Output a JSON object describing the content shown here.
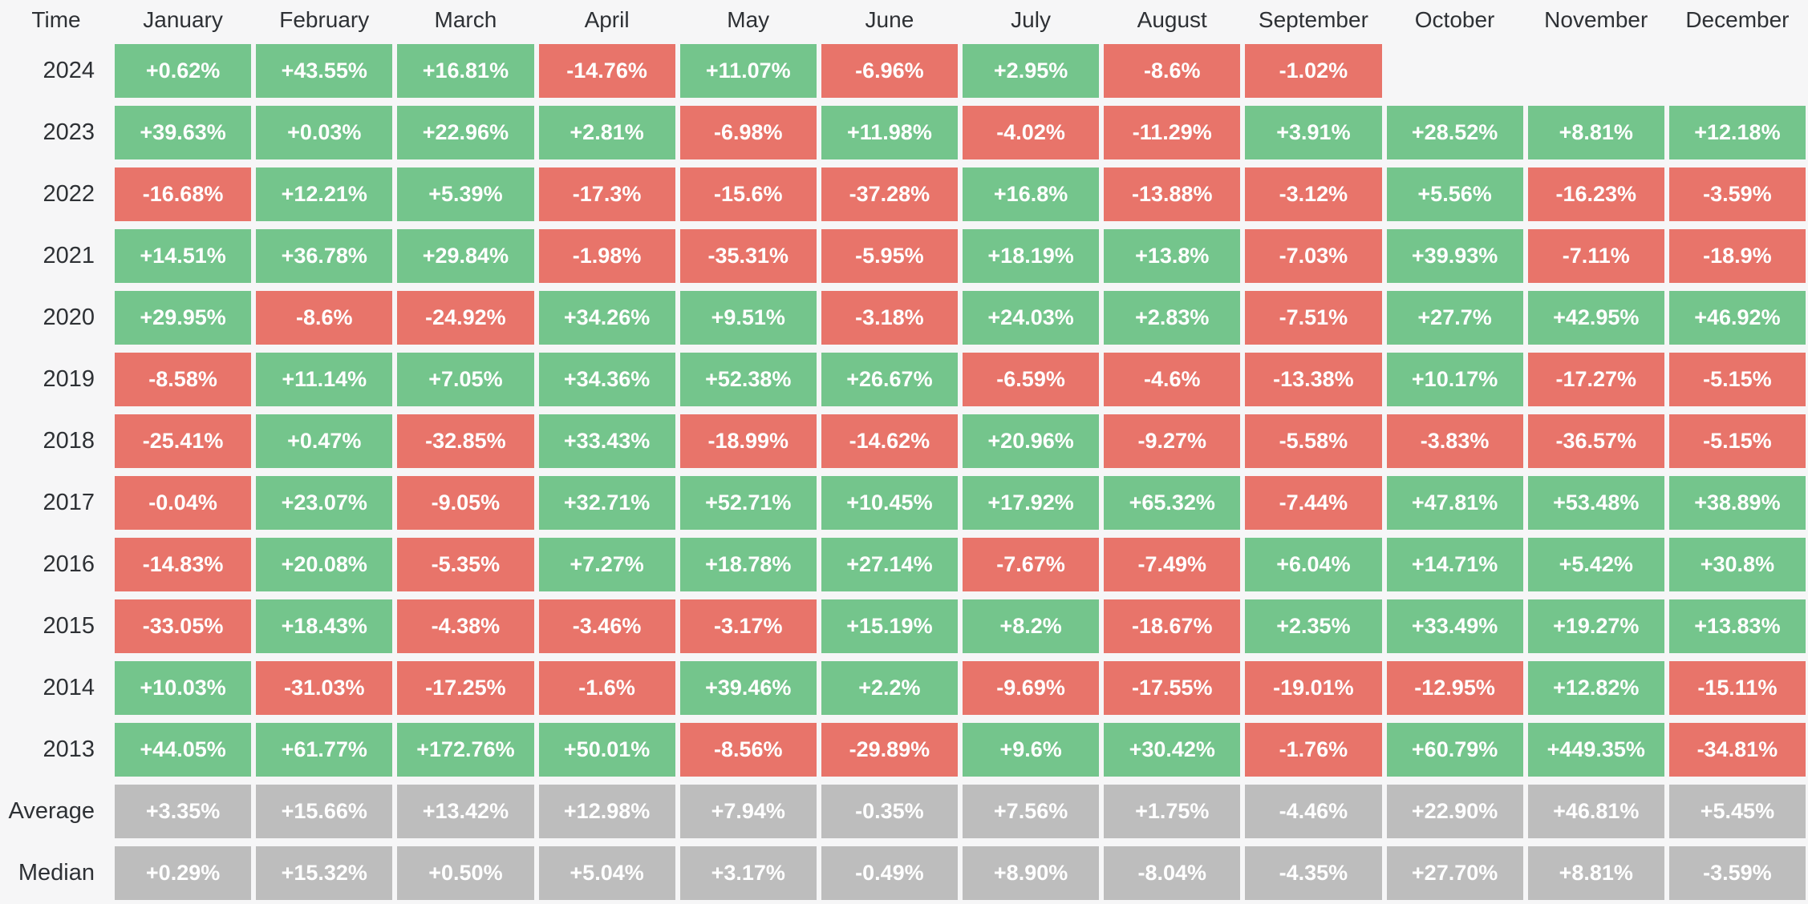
{
  "colors": {
    "bg": "#f6f6f7",
    "pos": "#74c58c",
    "neg": "#e8746a",
    "neutral": "#bdbdbd",
    "header_text": "#2e3135",
    "cell_text": "#ffffff"
  },
  "table": {
    "time_label": "Time",
    "months": [
      "January",
      "February",
      "March",
      "April",
      "May",
      "June",
      "July",
      "August",
      "September",
      "October",
      "November",
      "December"
    ],
    "rows": [
      {
        "label": "2024",
        "kind": "year",
        "values": [
          "+0.62%",
          "+43.55%",
          "+16.81%",
          "-14.76%",
          "+11.07%",
          "-6.96%",
          "+2.95%",
          "-8.6%",
          "-1.02%",
          "",
          "",
          ""
        ]
      },
      {
        "label": "2023",
        "kind": "year",
        "values": [
          "+39.63%",
          "+0.03%",
          "+22.96%",
          "+2.81%",
          "-6.98%",
          "+11.98%",
          "-4.02%",
          "-11.29%",
          "+3.91%",
          "+28.52%",
          "+8.81%",
          "+12.18%"
        ]
      },
      {
        "label": "2022",
        "kind": "year",
        "values": [
          "-16.68%",
          "+12.21%",
          "+5.39%",
          "-17.3%",
          "-15.6%",
          "-37.28%",
          "+16.8%",
          "-13.88%",
          "-3.12%",
          "+5.56%",
          "-16.23%",
          "-3.59%"
        ]
      },
      {
        "label": "2021",
        "kind": "year",
        "values": [
          "+14.51%",
          "+36.78%",
          "+29.84%",
          "-1.98%",
          "-35.31%",
          "-5.95%",
          "+18.19%",
          "+13.8%",
          "-7.03%",
          "+39.93%",
          "-7.11%",
          "-18.9%"
        ]
      },
      {
        "label": "2020",
        "kind": "year",
        "values": [
          "+29.95%",
          "-8.6%",
          "-24.92%",
          "+34.26%",
          "+9.51%",
          "-3.18%",
          "+24.03%",
          "+2.83%",
          "-7.51%",
          "+27.7%",
          "+42.95%",
          "+46.92%"
        ]
      },
      {
        "label": "2019",
        "kind": "year",
        "values": [
          "-8.58%",
          "+11.14%",
          "+7.05%",
          "+34.36%",
          "+52.38%",
          "+26.67%",
          "-6.59%",
          "-4.6%",
          "-13.38%",
          "+10.17%",
          "-17.27%",
          "-5.15%"
        ]
      },
      {
        "label": "2018",
        "kind": "year",
        "values": [
          "-25.41%",
          "+0.47%",
          "-32.85%",
          "+33.43%",
          "-18.99%",
          "-14.62%",
          "+20.96%",
          "-9.27%",
          "-5.58%",
          "-3.83%",
          "-36.57%",
          "-5.15%"
        ]
      },
      {
        "label": "2017",
        "kind": "year",
        "values": [
          "-0.04%",
          "+23.07%",
          "-9.05%",
          "+32.71%",
          "+52.71%",
          "+10.45%",
          "+17.92%",
          "+65.32%",
          "-7.44%",
          "+47.81%",
          "+53.48%",
          "+38.89%"
        ]
      },
      {
        "label": "2016",
        "kind": "year",
        "values": [
          "-14.83%",
          "+20.08%",
          "-5.35%",
          "+7.27%",
          "+18.78%",
          "+27.14%",
          "-7.67%",
          "-7.49%",
          "+6.04%",
          "+14.71%",
          "+5.42%",
          "+30.8%"
        ]
      },
      {
        "label": "2015",
        "kind": "year",
        "values": [
          "-33.05%",
          "+18.43%",
          "-4.38%",
          "-3.46%",
          "-3.17%",
          "+15.19%",
          "+8.2%",
          "-18.67%",
          "+2.35%",
          "+33.49%",
          "+19.27%",
          "+13.83%"
        ]
      },
      {
        "label": "2014",
        "kind": "year",
        "values": [
          "+10.03%",
          "-31.03%",
          "-17.25%",
          "-1.6%",
          "+39.46%",
          "+2.2%",
          "-9.69%",
          "-17.55%",
          "-19.01%",
          "-12.95%",
          "+12.82%",
          "-15.11%"
        ]
      },
      {
        "label": "2013",
        "kind": "year",
        "values": [
          "+44.05%",
          "+61.77%",
          "+172.76%",
          "+50.01%",
          "-8.56%",
          "-29.89%",
          "+9.6%",
          "+30.42%",
          "-1.76%",
          "+60.79%",
          "+449.35%",
          "-34.81%"
        ]
      },
      {
        "label": "Average",
        "kind": "summary",
        "values": [
          "+3.35%",
          "+15.66%",
          "+13.42%",
          "+12.98%",
          "+7.94%",
          "-0.35%",
          "+7.56%",
          "+1.75%",
          "-4.46%",
          "+22.90%",
          "+46.81%",
          "+5.45%"
        ]
      },
      {
        "label": "Median",
        "kind": "summary",
        "values": [
          "+0.29%",
          "+15.32%",
          "+0.50%",
          "+5.04%",
          "+3.17%",
          "-0.49%",
          "+8.90%",
          "-8.04%",
          "-4.35%",
          "+27.70%",
          "+8.81%",
          "-3.59%"
        ]
      }
    ]
  },
  "chart_data": {
    "type": "heatmap",
    "x_labels": [
      "January",
      "February",
      "March",
      "April",
      "May",
      "June",
      "July",
      "August",
      "September",
      "October",
      "November",
      "December"
    ],
    "y_labels": [
      "2024",
      "2023",
      "2022",
      "2021",
      "2020",
      "2019",
      "2018",
      "2017",
      "2016",
      "2015",
      "2014",
      "2013",
      "Average",
      "Median"
    ],
    "unit": "%",
    "values": [
      [
        0.62,
        43.55,
        16.81,
        -14.76,
        11.07,
        -6.96,
        2.95,
        -8.6,
        -1.02,
        null,
        null,
        null
      ],
      [
        39.63,
        0.03,
        22.96,
        2.81,
        -6.98,
        11.98,
        -4.02,
        -11.29,
        3.91,
        28.52,
        8.81,
        12.18
      ],
      [
        -16.68,
        12.21,
        5.39,
        -17.3,
        -15.6,
        -37.28,
        16.8,
        -13.88,
        -3.12,
        5.56,
        -16.23,
        -3.59
      ],
      [
        14.51,
        36.78,
        29.84,
        -1.98,
        -35.31,
        -5.95,
        18.19,
        13.8,
        -7.03,
        39.93,
        -7.11,
        -18.9
      ],
      [
        29.95,
        -8.6,
        -24.92,
        34.26,
        9.51,
        -3.18,
        24.03,
        2.83,
        -7.51,
        27.7,
        42.95,
        46.92
      ],
      [
        -8.58,
        11.14,
        7.05,
        34.36,
        52.38,
        26.67,
        -6.59,
        -4.6,
        -13.38,
        10.17,
        -17.27,
        -5.15
      ],
      [
        -25.41,
        0.47,
        -32.85,
        33.43,
        -18.99,
        -14.62,
        20.96,
        -9.27,
        -5.58,
        -3.83,
        -36.57,
        -5.15
      ],
      [
        -0.04,
        23.07,
        -9.05,
        32.71,
        52.71,
        10.45,
        17.92,
        65.32,
        -7.44,
        47.81,
        53.48,
        38.89
      ],
      [
        -14.83,
        20.08,
        -5.35,
        7.27,
        18.78,
        27.14,
        -7.67,
        -7.49,
        6.04,
        14.71,
        5.42,
        30.8
      ],
      [
        -33.05,
        18.43,
        -4.38,
        -3.46,
        -3.17,
        15.19,
        8.2,
        -18.67,
        2.35,
        33.49,
        19.27,
        13.83
      ],
      [
        10.03,
        -31.03,
        -17.25,
        -1.6,
        39.46,
        2.2,
        -9.69,
        -17.55,
        -19.01,
        -12.95,
        12.82,
        -15.11
      ],
      [
        44.05,
        61.77,
        172.76,
        50.01,
        -8.56,
        -29.89,
        9.6,
        30.42,
        -1.76,
        60.79,
        449.35,
        -34.81
      ],
      [
        3.35,
        15.66,
        13.42,
        12.98,
        7.94,
        -0.35,
        7.56,
        1.75,
        -4.46,
        22.9,
        46.81,
        5.45
      ],
      [
        0.29,
        15.32,
        0.5,
        5.04,
        3.17,
        -0.49,
        8.9,
        -8.04,
        -4.35,
        27.7,
        8.81,
        -3.59
      ]
    ],
    "legend": "none",
    "grid": "off",
    "color_coding": {
      "positive": "green",
      "negative": "red",
      "summary_rows": "gray"
    }
  }
}
